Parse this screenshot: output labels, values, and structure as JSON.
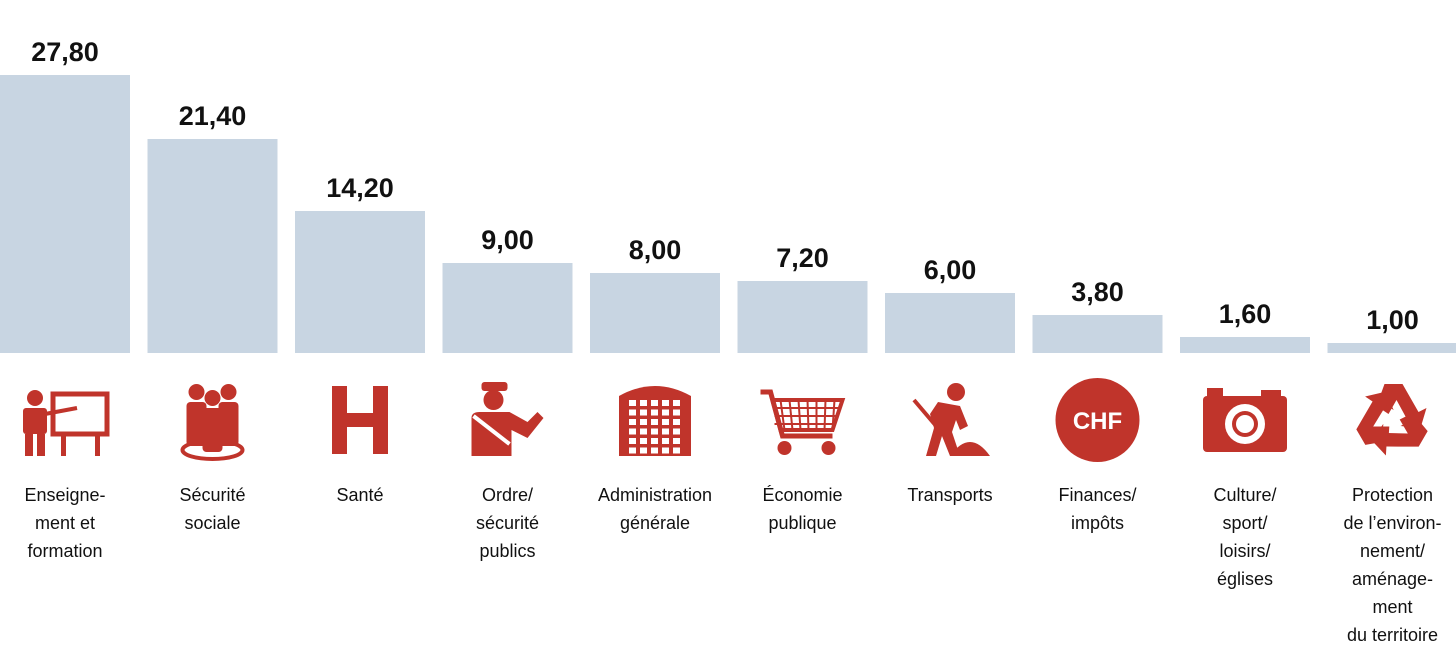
{
  "chart_data": {
    "type": "bar",
    "categories": [
      "Enseigne-\nment et\nformation",
      "Sécurité\nsociale",
      "Santé",
      "Ordre/\nsécurité\npublics",
      "Administration\ngénérale",
      "Économie\npublique",
      "Transports",
      "Finances/\nimpôts",
      "Culture/\nsport/\nloisirs/\néglises",
      "Protection\nde l’environ-\nnement/\naménage-\nment\ndu territoire"
    ],
    "values": [
      27.8,
      21.4,
      14.2,
      9.0,
      8.0,
      7.2,
      6.0,
      3.8,
      1.6,
      1.0
    ],
    "value_labels": [
      "27,80",
      "21,40",
      "14,20",
      "9,00",
      "8,00",
      "7,20",
      "6,00",
      "3,80",
      "1,60",
      "1,00"
    ],
    "ylim": [
      0,
      27.8
    ],
    "grid": false,
    "bar_color": "#c8d5e2",
    "icon_color": "#c0342b",
    "icons": [
      "teacher-icon",
      "group-icon",
      "hospital-icon",
      "police-icon",
      "building-icon",
      "cart-icon",
      "worker-icon",
      "chf-icon",
      "camera-icon",
      "recycle-icon"
    ],
    "chf_text": "CHF"
  }
}
